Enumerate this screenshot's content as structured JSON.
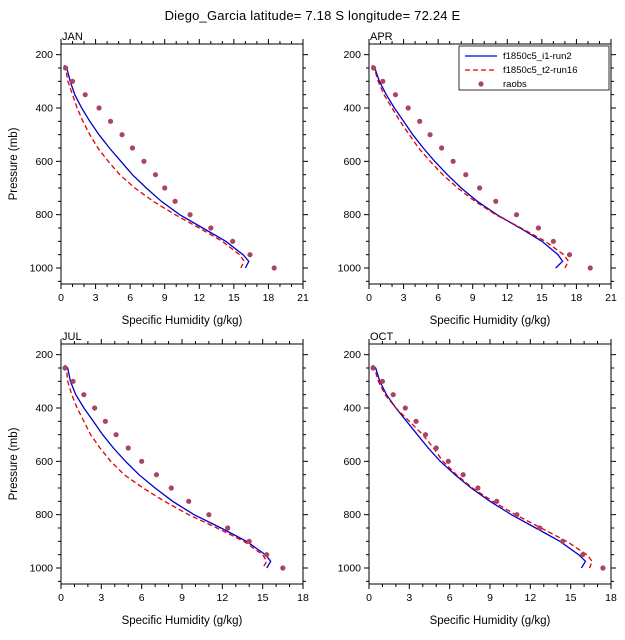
{
  "page_title": "Diego_Garcia  latitude= 7.18 S longitude= 72.24 E",
  "style": {
    "frame_color": "#000000",
    "background": "#ffffff",
    "model1_color": "#0000cd",
    "model2_color": "#dd0000",
    "raobs_color": "#aa4466"
  },
  "legend": {
    "entries": [
      "f1850c5_i1-run2",
      "f1850c5_t2-run16",
      "raobs"
    ],
    "position": "top-right of APR panel"
  },
  "chart_data": [
    {
      "type": "line",
      "title": "JAN",
      "xlabel": "Specific Humidity (g/kg)",
      "ylabel": "Pressure (mb)",
      "xlim": [
        0,
        21
      ],
      "xticks": [
        0,
        3,
        6,
        9,
        12,
        15,
        18,
        21
      ],
      "xminor_step": 1,
      "ylim_top": 160,
      "ylim_bottom": 1060,
      "yticks": [
        200,
        400,
        600,
        800,
        1000
      ],
      "yminor_step": 50,
      "y_axis_note": "pressure axis inverted (200 top, 1000 bottom)",
      "show_legend": false,
      "series": [
        {
          "name": "f1850c5_i1-run2",
          "color": "#0000cd",
          "style": "solid",
          "pressure": [
            240,
            250,
            300,
            350,
            400,
            450,
            500,
            550,
            600,
            650,
            700,
            750,
            800,
            850,
            900,
            950,
            975,
            1000
          ],
          "humidity": [
            0.3,
            0.5,
            0.8,
            1.2,
            1.8,
            2.5,
            3.3,
            4.2,
            5.2,
            6.2,
            7.4,
            8.7,
            10.3,
            12.3,
            14.3,
            15.8,
            16.3,
            16.0
          ]
        },
        {
          "name": "f1850c5_t2-run16",
          "color": "#dd0000",
          "style": "dashed",
          "pressure": [
            240,
            250,
            300,
            350,
            400,
            450,
            500,
            550,
            600,
            650,
            700,
            750,
            800,
            850,
            900,
            950,
            975,
            1000
          ],
          "humidity": [
            0.25,
            0.4,
            0.6,
            1.0,
            1.4,
            1.9,
            2.5,
            3.2,
            4.1,
            5.1,
            6.4,
            8.0,
            9.9,
            12.0,
            14.0,
            15.5,
            15.9,
            15.6
          ]
        }
      ],
      "markers": {
        "name": "raobs",
        "color": "#aa4466",
        "pressure": [
          250,
          300,
          350,
          400,
          450,
          500,
          550,
          600,
          650,
          700,
          750,
          800,
          850,
          900,
          950,
          1000
        ],
        "humidity": [
          0.4,
          1.0,
          2.1,
          3.3,
          4.3,
          5.3,
          6.2,
          7.2,
          8.2,
          9.0,
          9.9,
          11.2,
          13.0,
          14.9,
          16.4,
          18.5
        ]
      }
    },
    {
      "type": "line",
      "title": "APR",
      "xlabel": "Specific Humidity (g/kg)",
      "ylabel": "",
      "xlim": [
        0,
        21
      ],
      "xticks": [
        0,
        3,
        6,
        9,
        12,
        15,
        18,
        21
      ],
      "xminor_step": 1,
      "ylim_top": 160,
      "ylim_bottom": 1060,
      "yticks": [
        200,
        400,
        600,
        800,
        1000
      ],
      "yminor_step": 50,
      "y_axis_note": "pressure axis inverted (200 top, 1000 bottom)",
      "show_legend": true,
      "series": [
        {
          "name": "f1850c5_i1-run2",
          "color": "#0000cd",
          "style": "solid",
          "pressure": [
            240,
            250,
            300,
            350,
            400,
            450,
            500,
            550,
            600,
            650,
            700,
            750,
            800,
            850,
            900,
            950,
            975,
            1000
          ],
          "humidity": [
            0.3,
            0.5,
            0.9,
            1.5,
            2.2,
            3.0,
            3.8,
            4.7,
            5.7,
            6.8,
            8.0,
            9.4,
            11.1,
            13.1,
            15.0,
            16.4,
            16.8,
            16.2
          ]
        },
        {
          "name": "f1850c5_t2-run16",
          "color": "#dd0000",
          "style": "dashed",
          "pressure": [
            240,
            250,
            300,
            350,
            400,
            450,
            500,
            550,
            600,
            650,
            700,
            750,
            800,
            850,
            900,
            950,
            975,
            1000
          ],
          "humidity": [
            0.25,
            0.45,
            0.8,
            1.3,
            2.0,
            2.7,
            3.5,
            4.3,
            5.3,
            6.4,
            7.7,
            9.2,
            11.0,
            13.2,
            15.3,
            16.9,
            17.3,
            17.0
          ]
        }
      ],
      "markers": {
        "name": "raobs",
        "color": "#aa4466",
        "pressure": [
          250,
          300,
          350,
          400,
          450,
          500,
          550,
          600,
          650,
          700,
          750,
          800,
          850,
          900,
          950,
          1000
        ],
        "humidity": [
          0.4,
          1.2,
          2.3,
          3.4,
          4.4,
          5.3,
          6.3,
          7.3,
          8.4,
          9.6,
          11.0,
          12.8,
          14.7,
          16.0,
          17.4,
          19.2
        ]
      }
    },
    {
      "type": "line",
      "title": "JUL",
      "xlabel": "Specific Humidity (g/kg)",
      "ylabel": "Pressure (mb)",
      "xlim": [
        0,
        18
      ],
      "xticks": [
        0,
        3,
        6,
        9,
        12,
        15,
        18
      ],
      "xminor_step": 1,
      "ylim_top": 160,
      "ylim_bottom": 1060,
      "yticks": [
        200,
        400,
        600,
        800,
        1000
      ],
      "yminor_step": 50,
      "y_axis_note": "pressure axis inverted (200 top, 1000 bottom)",
      "show_legend": false,
      "series": [
        {
          "name": "f1850c5_i1-run2",
          "color": "#0000cd",
          "style": "solid",
          "pressure": [
            240,
            250,
            300,
            350,
            400,
            450,
            500,
            550,
            600,
            650,
            700,
            750,
            800,
            850,
            900,
            950,
            975,
            1000
          ],
          "humidity": [
            0.3,
            0.5,
            0.7,
            1.1,
            1.7,
            2.4,
            3.1,
            3.9,
            4.8,
            5.8,
            7.0,
            8.3,
            9.9,
            11.9,
            13.8,
            15.2,
            15.6,
            15.3
          ]
        },
        {
          "name": "f1850c5_t2-run16",
          "color": "#dd0000",
          "style": "dashed",
          "pressure": [
            240,
            250,
            300,
            350,
            400,
            450,
            500,
            550,
            600,
            650,
            700,
            750,
            800,
            850,
            900,
            950,
            975,
            1000
          ],
          "humidity": [
            0.25,
            0.4,
            0.5,
            0.8,
            1.2,
            1.7,
            2.2,
            2.9,
            3.7,
            4.7,
            6.1,
            7.7,
            9.5,
            11.6,
            13.6,
            15.0,
            15.3,
            15.0
          ]
        }
      ],
      "markers": {
        "name": "raobs",
        "color": "#aa4466",
        "pressure": [
          250,
          300,
          350,
          400,
          450,
          500,
          550,
          600,
          650,
          700,
          750,
          800,
          850,
          900,
          950,
          1000
        ],
        "humidity": [
          0.3,
          0.9,
          1.7,
          2.5,
          3.3,
          4.1,
          5.0,
          6.0,
          7.1,
          8.2,
          9.5,
          11.0,
          12.4,
          14.0,
          15.3,
          16.5
        ]
      }
    },
    {
      "type": "line",
      "title": "OCT",
      "xlabel": "Specific Humidity (g/kg)",
      "ylabel": "",
      "xlim": [
        0,
        18
      ],
      "xticks": [
        0,
        3,
        6,
        9,
        12,
        15,
        18
      ],
      "xminor_step": 1,
      "ylim_top": 160,
      "ylim_bottom": 1060,
      "yticks": [
        200,
        400,
        600,
        800,
        1000
      ],
      "yminor_step": 50,
      "y_axis_note": "pressure axis inverted (200 top, 1000 bottom)",
      "show_legend": false,
      "series": [
        {
          "name": "f1850c5_i1-run2",
          "color": "#0000cd",
          "style": "solid",
          "pressure": [
            240,
            250,
            300,
            350,
            400,
            450,
            500,
            550,
            600,
            650,
            700,
            750,
            800,
            850,
            900,
            950,
            975,
            1000
          ],
          "humidity": [
            0.3,
            0.5,
            0.8,
            1.3,
            2.0,
            2.8,
            3.6,
            4.4,
            5.3,
            6.4,
            7.6,
            9.0,
            10.6,
            12.4,
            14.2,
            15.6,
            16.1,
            15.8
          ]
        },
        {
          "name": "f1850c5_t2-run16",
          "color": "#dd0000",
          "style": "dashed",
          "pressure": [
            240,
            250,
            300,
            350,
            400,
            450,
            500,
            550,
            600,
            650,
            700,
            750,
            800,
            850,
            900,
            950,
            975,
            1000
          ],
          "humidity": [
            0.25,
            0.4,
            0.7,
            1.2,
            2.0,
            3.0,
            4.0,
            4.8,
            5.5,
            6.5,
            7.7,
            9.2,
            10.9,
            12.8,
            14.7,
            16.2,
            16.6,
            16.4
          ]
        }
      ],
      "markers": {
        "name": "raobs",
        "color": "#aa4466",
        "pressure": [
          250,
          300,
          350,
          400,
          450,
          500,
          550,
          600,
          650,
          700,
          750,
          800,
          850,
          900,
          950,
          1000
        ],
        "humidity": [
          0.3,
          1.0,
          1.8,
          2.7,
          3.5,
          4.2,
          5.0,
          5.9,
          7.0,
          8.1,
          9.5,
          11.0,
          12.7,
          14.4,
          15.9,
          17.4
        ]
      }
    }
  ]
}
